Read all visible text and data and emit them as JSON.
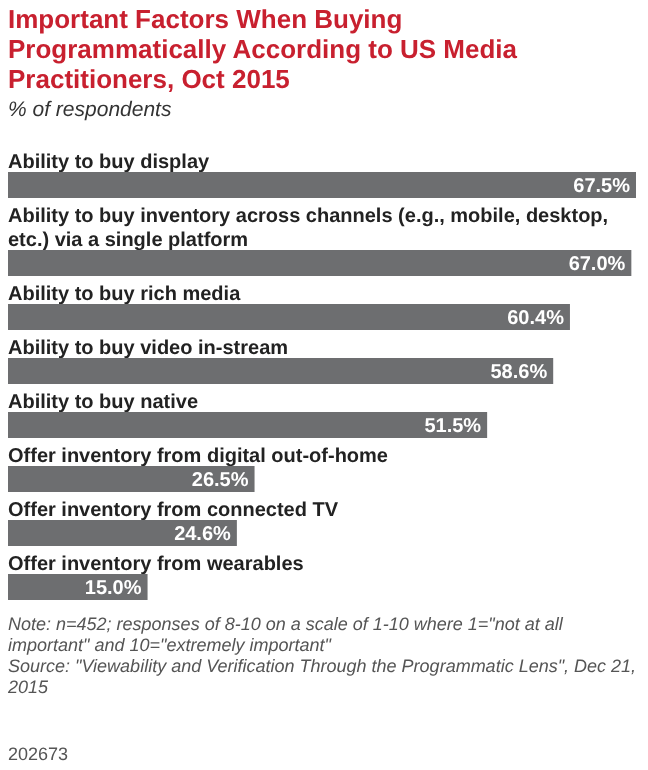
{
  "chart_data": {
    "type": "bar",
    "orientation": "horizontal",
    "title": "Important Factors When Buying Programmatically According to US Media Practitioners, Oct 2015",
    "subtitle": "% of respondents",
    "categories": [
      "Ability to buy display",
      "Ability to buy inventory across channels (e.g., mobile, desktop, etc.) via a single platform",
      "Ability to buy rich media",
      "Ability to buy video in-stream",
      "Ability to buy native",
      "Offer inventory from digital out-of-home",
      "Offer inventory from connected TV",
      "Offer inventory from wearables"
    ],
    "values": [
      67.5,
      67.0,
      60.4,
      58.6,
      51.5,
      26.5,
      24.6,
      15.0
    ],
    "value_labels": [
      "67.5%",
      "67.0%",
      "60.4%",
      "58.6%",
      "51.5%",
      "26.5%",
      "24.6%",
      "15.0%"
    ],
    "color": "#6d6e70",
    "annotations": [
      "Note: n=452; responses of 8-10 on a scale of 1-10 where 1=\"not at all important\" and 10=\"extremely important\"",
      "Source: \"Viewability and Verification Through the Programmatic Lens\", Dec 21, 2015",
      "202673"
    ]
  }
}
